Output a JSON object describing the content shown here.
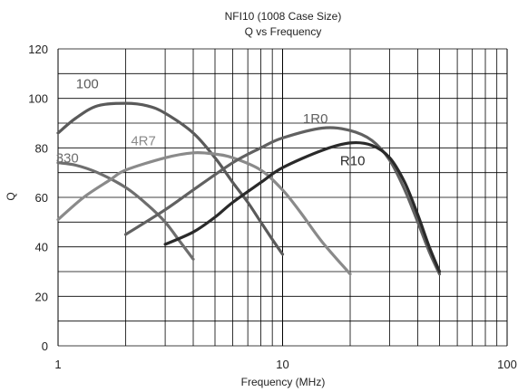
{
  "chart_data": {
    "type": "line",
    "title": "NFI10 (1008 Case Size)",
    "subtitle": "Q vs Frequency",
    "xlabel": "Frequency (MHz)",
    "ylabel": "Q",
    "x_scale": "log",
    "xlim": [
      1,
      100
    ],
    "ylim": [
      0,
      120
    ],
    "x_ticks": [
      1,
      10,
      100
    ],
    "y_ticks": [
      0,
      20,
      40,
      60,
      80,
      100,
      120
    ],
    "grid": true,
    "legend": "none",
    "series": [
      {
        "name": "100",
        "color": "#5a5a5a",
        "x": [
          1.0,
          1.2,
          1.5,
          2.0,
          2.5,
          3.0,
          4.0,
          5.0,
          6.0,
          7.0,
          8.0,
          9.0,
          10.0
        ],
        "y": [
          86,
          92,
          97,
          98,
          97,
          94,
          86,
          76,
          66,
          58,
          50,
          43,
          37
        ]
      },
      {
        "name": "330",
        "color": "#6e6e6e",
        "x": [
          1.0,
          1.2,
          1.5,
          2.0,
          2.5,
          3.0,
          3.5,
          4.0
        ],
        "y": [
          74,
          73,
          70,
          64,
          57,
          50,
          42,
          35
        ]
      },
      {
        "name": "4R7",
        "color": "#8a8a8a",
        "x": [
          1.0,
          1.3,
          1.7,
          2.0,
          3.0,
          4.0,
          5.0,
          6.0,
          8.0,
          10.0,
          12.0,
          15.0,
          20.0
        ],
        "y": [
          51,
          60,
          67,
          71,
          76,
          78,
          77.5,
          76,
          71,
          63,
          54,
          42,
          29
        ]
      },
      {
        "name": "1R0",
        "color": "#616161",
        "x": [
          2.0,
          3.0,
          4.0,
          6.0,
          8.0,
          10.0,
          15.0,
          20.0,
          25.0,
          30.0,
          35.0,
          40.0,
          45.0,
          50.0
        ],
        "y": [
          45,
          55,
          63,
          74,
          80,
          84,
          88,
          87,
          83,
          75,
          63,
          50,
          38,
          29
        ]
      },
      {
        "name": "R10",
        "color": "#2a2a2a",
        "x": [
          3.0,
          4.0,
          5.0,
          6.0,
          8.0,
          10.0,
          15.0,
          20.0,
          25.0,
          30.0,
          35.0,
          40.0,
          45.0,
          50.0
        ],
        "y": [
          41,
          46,
          52,
          58,
          66,
          72,
          79,
          82,
          81,
          76,
          66,
          53,
          40,
          30
        ]
      }
    ]
  }
}
